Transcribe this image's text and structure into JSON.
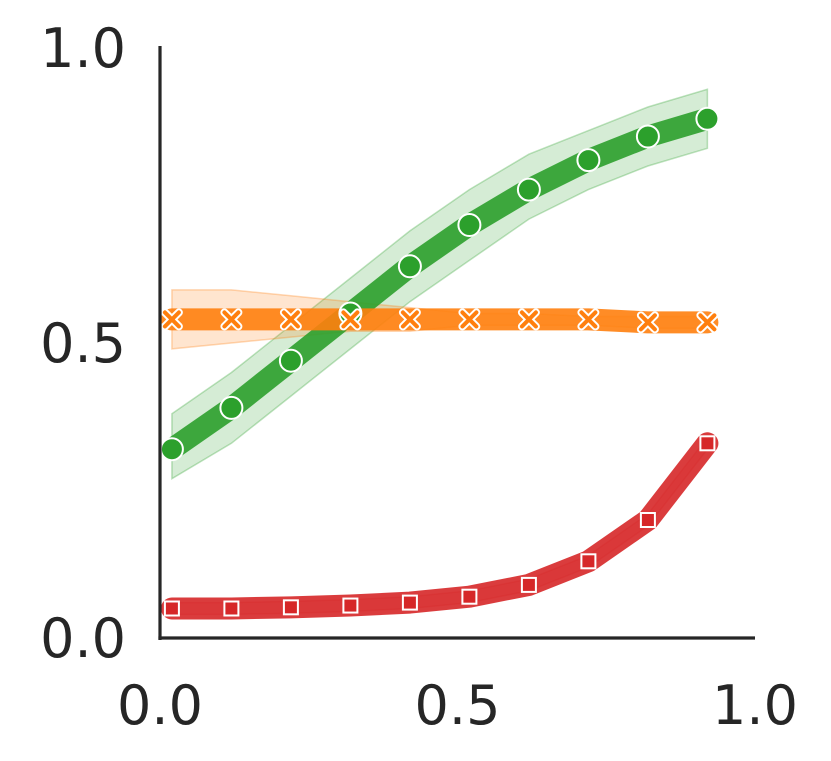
{
  "chart_data": {
    "type": "line",
    "title": "",
    "xlabel": "",
    "ylabel": "",
    "xlim": [
      0.0,
      1.0
    ],
    "ylim": [
      0.0,
      1.0
    ],
    "x_ticks": [
      "0.0",
      "0.5",
      "1.0"
    ],
    "y_ticks": [
      "0.0",
      "0.5",
      "1.0"
    ],
    "grid": false,
    "x": [
      0.02,
      0.12,
      0.22,
      0.32,
      0.42,
      0.52,
      0.62,
      0.72,
      0.82,
      0.92
    ],
    "series": [
      {
        "color": "#2ca02c",
        "marker": "circle",
        "values": [
          0.32,
          0.39,
          0.47,
          0.55,
          0.63,
          0.7,
          0.76,
          0.81,
          0.85,
          0.88
        ],
        "lower": [
          0.27,
          0.33,
          0.41,
          0.49,
          0.57,
          0.64,
          0.71,
          0.76,
          0.8,
          0.83
        ],
        "upper": [
          0.38,
          0.45,
          0.53,
          0.61,
          0.69,
          0.76,
          0.82,
          0.86,
          0.9,
          0.93
        ]
      },
      {
        "color": "#ff7f0e",
        "marker": "x",
        "values": [
          0.54,
          0.54,
          0.54,
          0.54,
          0.54,
          0.54,
          0.54,
          0.54,
          0.535,
          0.535
        ],
        "lower": [
          0.49,
          0.5,
          0.51,
          0.52,
          0.52,
          0.53,
          0.53,
          0.53,
          0.525,
          0.525
        ],
        "upper": [
          0.59,
          0.59,
          0.58,
          0.57,
          0.56,
          0.55,
          0.55,
          0.545,
          0.545,
          0.545
        ]
      },
      {
        "color": "#d62728",
        "marker": "square",
        "values": [
          0.05,
          0.05,
          0.052,
          0.055,
          0.06,
          0.07,
          0.09,
          0.13,
          0.2,
          0.33
        ],
        "lower": [
          0.04,
          0.04,
          0.042,
          0.045,
          0.05,
          0.06,
          0.08,
          0.12,
          0.19,
          0.32
        ],
        "upper": [
          0.06,
          0.06,
          0.062,
          0.065,
          0.07,
          0.08,
          0.1,
          0.14,
          0.21,
          0.34
        ]
      }
    ]
  }
}
